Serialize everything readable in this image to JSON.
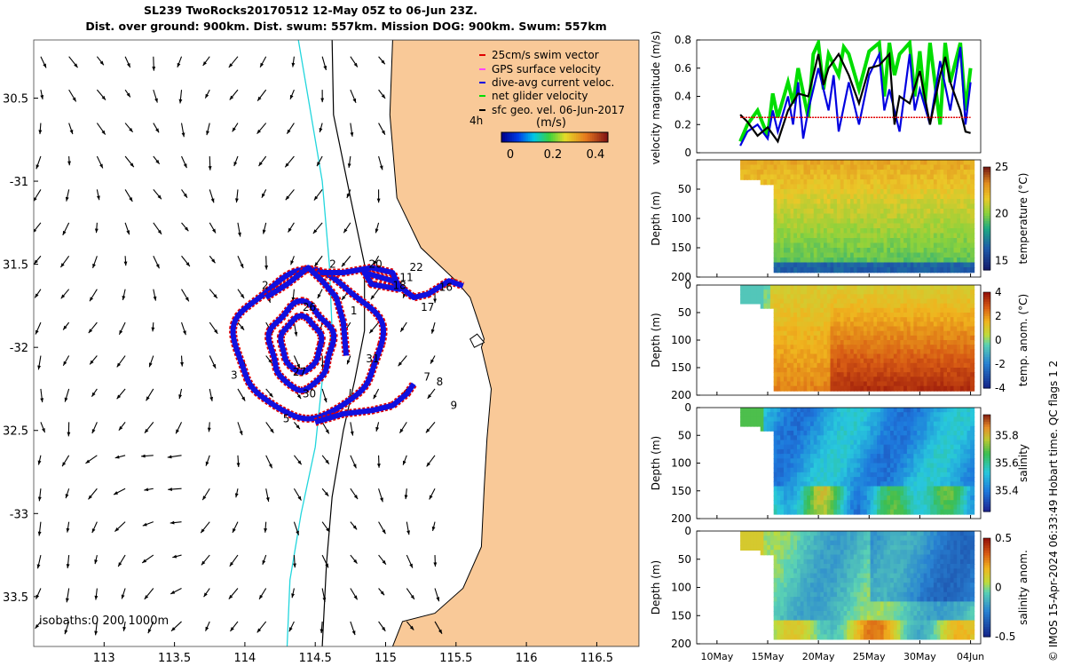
{
  "title_line1": "SL239 TwoRocks20170512 12-May 05Z to 06-Jun 23Z.",
  "title_line2": "Dist. over ground: 900km. Dist. swum: 557km. Mission DOG: 900km. Swum: 557km",
  "credit": "© IMOS 15-Apr-2024 06:33:49 Hobart time. QC flags 1 2",
  "chart_data": [
    {
      "type": "scatter",
      "name": "map",
      "xlim": [
        112.5,
        116.8
      ],
      "ylim": [
        -33.8,
        -30.15
      ],
      "xticks": [
        113,
        113.5,
        114,
        114.5,
        115,
        115.5,
        116,
        116.5
      ],
      "yticks": [
        -30.5,
        -31,
        -31.5,
        -32,
        -32.5,
        -33,
        -33.5
      ],
      "xtick_labels": [
        "113",
        "113.5",
        "114",
        "114.5",
        "115",
        "115.5",
        "116",
        "116.5"
      ],
      "ytick_labels": [
        "30.5",
        "-31",
        "31.5",
        "-32",
        "32.5",
        "-33",
        "33.5"
      ],
      "legend": [
        {
          "label": "25cm/s swim vector",
          "color": "#e00000"
        },
        {
          "label": "GPS surface velocity",
          "color": "#ff44ff"
        },
        {
          "label": "dive-avg current veloc.",
          "color": "#0000e0"
        },
        {
          "label": "net glider velocity",
          "color": "#00dd00"
        },
        {
          "label": "sfc geo. vel. 06-Jun-2017",
          "color": "#000000"
        }
      ],
      "colorbar": {
        "label": "(m/s)",
        "ticks": [
          0,
          0.2,
          0.4
        ],
        "tick_labels": [
          "0",
          "0.2",
          "0.4"
        ],
        "range": [
          0,
          0.5
        ]
      },
      "annotation_4h": "4h",
      "isobaths_label": "isobaths:0   200  1000m",
      "day_labels": [
        {
          "t": "1",
          "x": 114.75,
          "y": -31.8
        },
        {
          "t": "2",
          "x": 114.12,
          "y": -31.65
        },
        {
          "t": "3",
          "x": 113.9,
          "y": -32.19
        },
        {
          "t": "5",
          "x": 114.27,
          "y": -32.45
        },
        {
          "t": "7",
          "x": 115.27,
          "y": -32.2
        },
        {
          "t": "8",
          "x": 115.36,
          "y": -32.23
        },
        {
          "t": "9",
          "x": 115.46,
          "y": -32.37
        },
        {
          "t": "16",
          "x": 115.38,
          "y": -31.66
        },
        {
          "t": "17",
          "x": 115.25,
          "y": -31.78
        },
        {
          "t": "18",
          "x": 115.05,
          "y": -31.65
        },
        {
          "t": "20",
          "x": 114.88,
          "y": -31.52
        },
        {
          "t": "22",
          "x": 115.17,
          "y": -31.54
        },
        {
          "t": "26",
          "x": 114.41,
          "y": -31.78
        },
        {
          "t": "27",
          "x": 114.34,
          "y": -32.17
        },
        {
          "t": "30",
          "x": 114.41,
          "y": -32.3
        },
        {
          "t": "31",
          "x": 114.86,
          "y": -32.09
        },
        {
          "t": "2",
          "x": 114.6,
          "y": -31.52
        },
        {
          "t": "11",
          "x": 115.1,
          "y": -31.6
        }
      ]
    },
    {
      "type": "line",
      "name": "velocity_magnitude",
      "ylabel": "velocity magnitude (m/s)",
      "ylim": [
        0,
        0.8
      ],
      "yticks": [
        0,
        0.2,
        0.4,
        0.6,
        0.8
      ],
      "ytick_labels": [
        "0",
        "0.2",
        "0.4",
        "0.6",
        "0.8"
      ],
      "xlim": [
        8,
        36
      ],
      "series": [
        {
          "name": "net glider velocity",
          "color": "#00dd00",
          "x": [
            12.3,
            13,
            14,
            15,
            15.5,
            16,
            17,
            17.5,
            18,
            19,
            19.5,
            20,
            20.5,
            21,
            22,
            22.5,
            23,
            24,
            25,
            26,
            26.5,
            27,
            27.5,
            28,
            29,
            29.5,
            30,
            30.5,
            31,
            32,
            32.5,
            33,
            34,
            34.5,
            35
          ],
          "values": [
            0.08,
            0.2,
            0.3,
            0.12,
            0.42,
            0.25,
            0.5,
            0.35,
            0.6,
            0.25,
            0.7,
            0.78,
            0.45,
            0.7,
            0.55,
            0.75,
            0.7,
            0.45,
            0.72,
            0.78,
            0.4,
            0.78,
            0.55,
            0.7,
            0.78,
            0.4,
            0.72,
            0.35,
            0.78,
            0.2,
            0.78,
            0.5,
            0.78,
            0.3,
            0.6
          ]
        },
        {
          "name": "dive-avg current veloc.",
          "color": "#0000e0",
          "x": [
            12.3,
            13,
            14,
            15,
            15.5,
            16,
            17,
            17.5,
            18,
            18.5,
            19,
            19.5,
            20,
            21,
            21.5,
            22,
            23,
            24,
            25,
            26,
            26.5,
            27,
            28,
            29,
            29.5,
            30,
            31,
            32,
            33,
            34,
            34.5,
            35
          ],
          "values": [
            0.05,
            0.15,
            0.2,
            0.1,
            0.3,
            0.15,
            0.4,
            0.2,
            0.5,
            0.1,
            0.3,
            0.45,
            0.6,
            0.3,
            0.55,
            0.15,
            0.5,
            0.2,
            0.55,
            0.7,
            0.3,
            0.45,
            0.15,
            0.7,
            0.3,
            0.45,
            0.2,
            0.65,
            0.3,
            0.75,
            0.2,
            0.5
          ]
        },
        {
          "name": "sfc geo. vel.",
          "color": "#000000",
          "x": [
            12.3,
            13,
            14,
            15,
            16,
            17,
            18,
            19,
            20,
            20.5,
            21,
            22,
            23,
            24,
            25,
            26,
            27,
            27.5,
            28,
            29,
            30,
            31,
            32,
            32.5,
            33,
            34,
            34.5,
            35
          ],
          "values": [
            0.27,
            0.22,
            0.12,
            0.18,
            0.08,
            0.3,
            0.42,
            0.4,
            0.7,
            0.48,
            0.6,
            0.7,
            0.55,
            0.35,
            0.6,
            0.62,
            0.7,
            0.2,
            0.4,
            0.35,
            0.58,
            0.2,
            0.55,
            0.68,
            0.5,
            0.3,
            0.15,
            0.14
          ]
        },
        {
          "name": "25cm/s reference",
          "color": "#e00000",
          "x": [
            12.3,
            35
          ],
          "values": [
            0.25,
            0.25
          ]
        }
      ]
    },
    {
      "type": "heatmap",
      "name": "temperature",
      "ylabel": "Depth (m)",
      "clabel": "temperature (°C)",
      "yticks": [
        0,
        50,
        100,
        150,
        200
      ],
      "ytick_labels": [
        "",
        "50",
        "100",
        "150",
        "200"
      ],
      "crange": [
        14,
        25
      ],
      "cticks": [
        15,
        20,
        25
      ],
      "ctick_labels": [
        "15",
        "20",
        "25"
      ],
      "colormap": "thermal"
    },
    {
      "type": "heatmap",
      "name": "temp_anomaly",
      "ylabel": "Depth (m)",
      "clabel": "temp. anom. (°C)",
      "yticks": [
        0,
        50,
        100,
        150,
        200
      ],
      "ytick_labels": [
        "0",
        "50",
        "100",
        "150",
        "200"
      ],
      "crange": [
        -4,
        4
      ],
      "cticks": [
        -4,
        -2,
        0,
        2,
        4
      ],
      "ctick_labels": [
        "-4",
        "-2",
        "0",
        "2",
        "4"
      ],
      "colormap": "diverging"
    },
    {
      "type": "heatmap",
      "name": "salinity",
      "ylabel": "Depth (m)",
      "clabel": "salinity",
      "yticks": [
        0,
        50,
        100,
        150,
        200
      ],
      "ytick_labels": [
        "0",
        "50",
        "100",
        "150",
        "200"
      ],
      "crange": [
        35.25,
        35.95
      ],
      "cticks": [
        35.4,
        35.6,
        35.8
      ],
      "ctick_labels": [
        "35.4",
        "35.6",
        "35.8"
      ],
      "colormap": "haline"
    },
    {
      "type": "heatmap",
      "name": "salinity_anomaly",
      "ylabel": "Depth (m)",
      "clabel": "salinity anom.",
      "yticks": [
        0,
        50,
        100,
        150,
        200
      ],
      "ytick_labels": [
        "0",
        "50",
        "100",
        "150",
        "200"
      ],
      "crange": [
        -0.5,
        0.5
      ],
      "cticks": [
        -0.5,
        0,
        0.5
      ],
      "ctick_labels": [
        "-0.5",
        "0",
        "0.5"
      ],
      "colormap": "diverging",
      "xticks": [
        10,
        15,
        20,
        25,
        30,
        35
      ],
      "xtick_labels": [
        "10May",
        "15May",
        "20May",
        "25May",
        "30May",
        "04Jun"
      ]
    }
  ]
}
